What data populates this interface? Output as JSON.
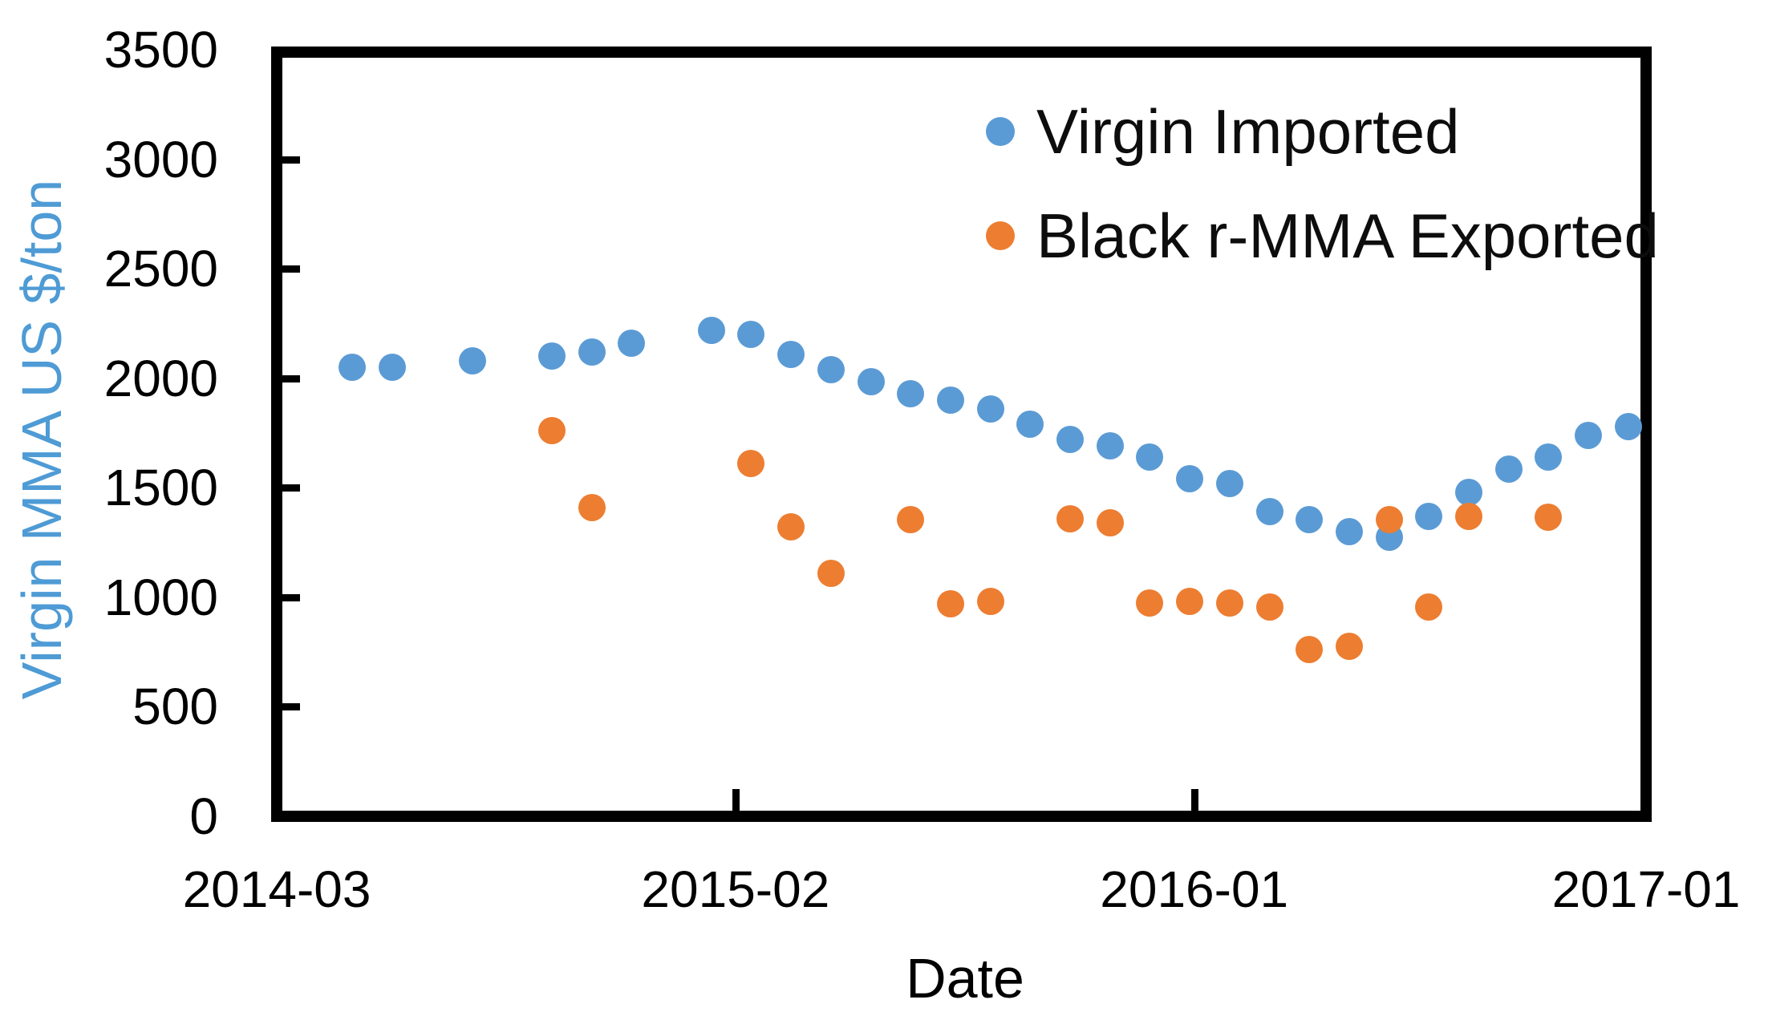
{
  "chart_data": {
    "type": "scatter",
    "title": "",
    "xlabel": "Date",
    "ylabel": "Virgin MMA US $/ton",
    "ylabel_color": "#4E9BD5",
    "ylim": [
      0,
      3500
    ],
    "y_ticks": [
      0,
      500,
      1000,
      1500,
      2000,
      2500,
      3000,
      3500
    ],
    "x_ticks": [
      {
        "label": "2014-03",
        "frac": 0.0,
        "mark": false
      },
      {
        "label": "2015-02",
        "frac": 0.335,
        "mark": true
      },
      {
        "label": "2016-01",
        "frac": 0.67,
        "mark": true
      },
      {
        "label": "2017-01",
        "frac": 1.0,
        "mark": false
      }
    ],
    "x_month_origin": "2014-03",
    "grid": false,
    "legend_position": "top-right-inside",
    "series": [
      {
        "name": "Virgin Imported",
        "color": "#5B9BD5",
        "points": [
          [
            "2014-05",
            2050
          ],
          [
            "2014-06",
            2050
          ],
          [
            "2014-08",
            2080
          ],
          [
            "2014-10",
            2100
          ],
          [
            "2014-11",
            2120
          ],
          [
            "2014-12",
            2160
          ],
          [
            "2015-02",
            2220
          ],
          [
            "2015-03",
            2200
          ],
          [
            "2015-04",
            2110
          ],
          [
            "2015-05",
            2040
          ],
          [
            "2015-06",
            1985
          ],
          [
            "2015-07",
            1930
          ],
          [
            "2015-08",
            1900
          ],
          [
            "2015-09",
            1860
          ],
          [
            "2015-10",
            1790
          ],
          [
            "2015-11",
            1720
          ],
          [
            "2015-12",
            1690
          ],
          [
            "2016-01",
            1640
          ],
          [
            "2016-02",
            1540
          ],
          [
            "2016-03",
            1520
          ],
          [
            "2016-04",
            1390
          ],
          [
            "2016-05",
            1355
          ],
          [
            "2016-06",
            1300
          ],
          [
            "2016-07",
            1275
          ],
          [
            "2016-08",
            1370
          ],
          [
            "2016-09",
            1480
          ],
          [
            "2016-10",
            1585
          ],
          [
            "2016-11",
            1640
          ],
          [
            "2016-12",
            1740
          ],
          [
            "2017-01",
            1780
          ]
        ]
      },
      {
        "name": "Black r-MMA Exported",
        "color": "#ED7D31",
        "points": [
          [
            "2014-10",
            1760
          ],
          [
            "2014-11",
            1410
          ],
          [
            "2015-03",
            1610
          ],
          [
            "2015-04",
            1320
          ],
          [
            "2015-05",
            1110
          ],
          [
            "2015-07",
            1355
          ],
          [
            "2015-08",
            970
          ],
          [
            "2015-09",
            980
          ],
          [
            "2015-11",
            1360
          ],
          [
            "2015-12",
            1340
          ],
          [
            "2016-01",
            975
          ],
          [
            "2016-02",
            980
          ],
          [
            "2016-03",
            975
          ],
          [
            "2016-04",
            955
          ],
          [
            "2016-05",
            760
          ],
          [
            "2016-06",
            775
          ],
          [
            "2016-07",
            1355
          ],
          [
            "2016-08",
            955
          ],
          [
            "2016-09",
            1370
          ],
          [
            "2016-11",
            1365
          ]
        ]
      }
    ]
  }
}
